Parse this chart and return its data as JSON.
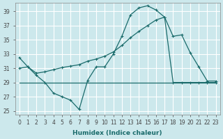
{
  "xlabel": "Humidex (Indice chaleur)",
  "bg_color": "#cce8ec",
  "grid_color": "#ffffff",
  "line_color": "#1a6b6b",
  "xlim": [
    -0.5,
    23.5
  ],
  "ylim": [
    24.5,
    40.2
  ],
  "xticks": [
    0,
    1,
    2,
    3,
    4,
    5,
    6,
    7,
    8,
    9,
    10,
    11,
    12,
    13,
    14,
    15,
    16,
    17,
    18,
    19,
    20,
    21,
    22,
    23
  ],
  "yticks": [
    25,
    27,
    29,
    31,
    33,
    35,
    37,
    39
  ],
  "line1_x": [
    0,
    1,
    2,
    3,
    4,
    5,
    6,
    7,
    8,
    9,
    10,
    11,
    12,
    13,
    14,
    15,
    16,
    17,
    18,
    19,
    20,
    21,
    22,
    23
  ],
  "line1_y": [
    32.5,
    31.2,
    30.0,
    29.0,
    27.5,
    27.0,
    26.5,
    25.2,
    29.3,
    31.2,
    31.2,
    33.0,
    35.5,
    38.5,
    39.5,
    39.8,
    39.2,
    38.2,
    29.0,
    29.0,
    29.0,
    29.0,
    29.0,
    29.0
  ],
  "line2_x": [
    0,
    1,
    2,
    3,
    4,
    5,
    6,
    7,
    8,
    9,
    10,
    11,
    12,
    13,
    14,
    15,
    16,
    17,
    18,
    19,
    20,
    21,
    22,
    23
  ],
  "line2_y": [
    31.0,
    31.2,
    30.3,
    30.5,
    30.8,
    31.1,
    31.3,
    31.5,
    32.0,
    32.3,
    32.7,
    33.3,
    34.2,
    35.3,
    36.2,
    37.0,
    37.8,
    38.2,
    35.5,
    35.7,
    33.2,
    31.2,
    29.2,
    29.2
  ],
  "line3_x": [
    0,
    1,
    2,
    3,
    4,
    5,
    6,
    7,
    8,
    9,
    10,
    11,
    12,
    13,
    14,
    15,
    16,
    17,
    18,
    19,
    20,
    21,
    22,
    23
  ],
  "line3_y": [
    29.0,
    29.0,
    29.0,
    29.0,
    29.0,
    29.0,
    29.0,
    29.0,
    29.0,
    29.0,
    29.0,
    29.0,
    29.0,
    29.0,
    29.0,
    29.0,
    29.0,
    29.0,
    29.0,
    29.0,
    29.0,
    29.0,
    29.0,
    29.0
  ],
  "xlabel_fontsize": 6.5,
  "tick_labelsize": 5.5
}
